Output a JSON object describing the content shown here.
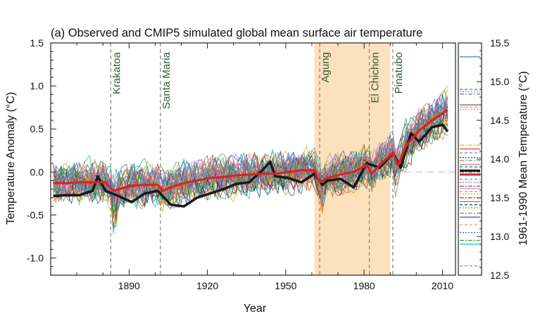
{
  "chart_data": {
    "type": "line",
    "title": "(a) Observed and CMIP5 simulated global mean surface air temperature",
    "xlabel": "Year",
    "ylabel": "Temperature Anomaly (°C)",
    "y2label": "1961-1990 Mean Temperature (°C)",
    "xlim": [
      1860,
      2015
    ],
    "ylim": [
      -1.2,
      1.5
    ],
    "y2lim": [
      12.5,
      15.5
    ],
    "x_ticks": [
      1890,
      1920,
      1950,
      1980,
      2010
    ],
    "y_ticks": [
      -1.0,
      -0.5,
      0.0,
      0.5,
      1.0,
      1.5
    ],
    "y_tick_labels": [
      "-1.0",
      "-0.5",
      "0.0",
      "0.5",
      "1.0",
      "1.5"
    ],
    "y2_ticks": [
      12.5,
      13.0,
      13.5,
      14.0,
      14.5,
      15.0,
      15.5
    ],
    "y2_tick_labels": [
      "12.5",
      "13.0",
      "13.5",
      "14.0",
      "14.5",
      "15.0",
      "15.5"
    ],
    "grid": false,
    "shaded_period": [
      1961,
      1990
    ],
    "shaded_color": "#fde0bc",
    "volcanoes": [
      {
        "name": "Krakatoa",
        "year": 1883
      },
      {
        "name": "Santa Maria",
        "year": 1902
      },
      {
        "name": "Agung",
        "year": 1963
      },
      {
        "name": "El Chichon",
        "year": 1982
      },
      {
        "name": "Pinatubo",
        "year": 1991
      }
    ],
    "volcano_label_color": "#2e5e2e",
    "series": [
      {
        "role": "multi-model-mean",
        "color": "#e02020",
        "x": [
          1861,
          1866,
          1871,
          1876,
          1881,
          1884,
          1886,
          1891,
          1896,
          1901,
          1903,
          1906,
          1911,
          1916,
          1921,
          1926,
          1931,
          1936,
          1941,
          1946,
          1951,
          1956,
          1961,
          1963,
          1966,
          1971,
          1976,
          1981,
          1983,
          1986,
          1991,
          1993,
          1996,
          2001,
          2006,
          2012
        ],
        "y": [
          -0.13,
          -0.13,
          -0.12,
          -0.12,
          -0.12,
          -0.22,
          -0.2,
          -0.16,
          -0.15,
          -0.15,
          -0.22,
          -0.18,
          -0.13,
          -0.1,
          -0.07,
          -0.06,
          -0.04,
          -0.03,
          -0.02,
          -0.02,
          0.0,
          0.02,
          0.02,
          -0.12,
          -0.07,
          -0.03,
          0.0,
          0.08,
          -0.02,
          0.08,
          0.22,
          0.08,
          0.3,
          0.48,
          0.6,
          0.72
        ]
      },
      {
        "role": "observations",
        "color": "#1a1a1a",
        "x": [
          1861,
          1866,
          1871,
          1876,
          1878,
          1881,
          1886,
          1891,
          1896,
          1901,
          1906,
          1911,
          1916,
          1921,
          1926,
          1931,
          1936,
          1941,
          1944,
          1946,
          1951,
          1956,
          1961,
          1964,
          1966,
          1971,
          1976,
          1981,
          1986,
          1991,
          1994,
          1998,
          2001,
          2006,
          2010,
          2012
        ],
        "y": [
          -0.28,
          -0.27,
          -0.27,
          -0.22,
          -0.05,
          -0.22,
          -0.28,
          -0.35,
          -0.25,
          -0.22,
          -0.38,
          -0.4,
          -0.3,
          -0.25,
          -0.2,
          -0.14,
          -0.12,
          0.02,
          0.12,
          -0.05,
          -0.07,
          -0.12,
          -0.02,
          -0.15,
          -0.1,
          -0.08,
          -0.18,
          0.1,
          0.05,
          0.22,
          0.05,
          0.45,
          0.35,
          0.52,
          0.55,
          0.47
        ]
      }
    ],
    "model_ensemble": {
      "member_count": 36,
      "colors": [
        "#1f77b4",
        "#2ca02c",
        "#17becf",
        "#9467bd",
        "#8c564b",
        "#e377c2",
        "#ff7f0e",
        "#bcbd22",
        "#d62728",
        "#7f7f7f",
        "#003f5c",
        "#6a994e",
        "#c06c84",
        "#355c7d",
        "#f4a259"
      ]
    },
    "side_panel_values": [
      15.32,
      14.9,
      14.87,
      14.84,
      14.7,
      14.67,
      14.64,
      14.18,
      14.13,
      14.08,
      14.02,
      13.98,
      13.93,
      13.9,
      13.87,
      13.83,
      13.8,
      13.74,
      13.7,
      13.65,
      13.62,
      13.58,
      13.55,
      13.5,
      13.45,
      13.41,
      13.37,
      13.3,
      13.25,
      13.15,
      13.05,
      12.95,
      12.9,
      12.62
    ]
  }
}
